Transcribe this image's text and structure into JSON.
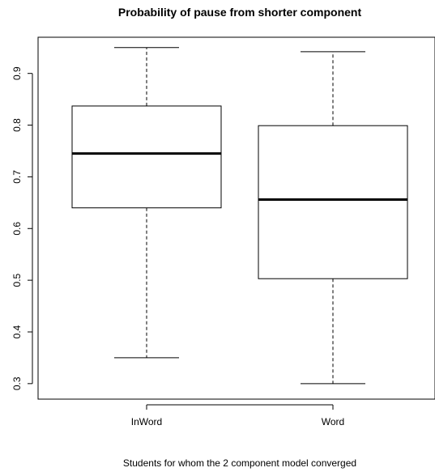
{
  "chart_data": {
    "type": "box",
    "title": "Probability of pause from shorter component",
    "xlabel": "Students for whom the 2 component model converged",
    "ylabel": "",
    "categories": [
      "InWord",
      "Word"
    ],
    "boxes": [
      {
        "name": "InWord",
        "min": 0.35,
        "q1": 0.64,
        "median": 0.745,
        "q3": 0.837,
        "max": 0.95
      },
      {
        "name": "Word",
        "min": 0.3,
        "q1": 0.503,
        "median": 0.656,
        "q3": 0.799,
        "max": 0.942
      }
    ],
    "yticks": [
      "0.3",
      "0.4",
      "0.5",
      "0.6",
      "0.7",
      "0.8",
      "0.9"
    ],
    "ylim": [
      0.27,
      0.97
    ],
    "grid": false,
    "colors": {
      "box_fill": "#ffffff",
      "stroke": "#000000"
    }
  }
}
